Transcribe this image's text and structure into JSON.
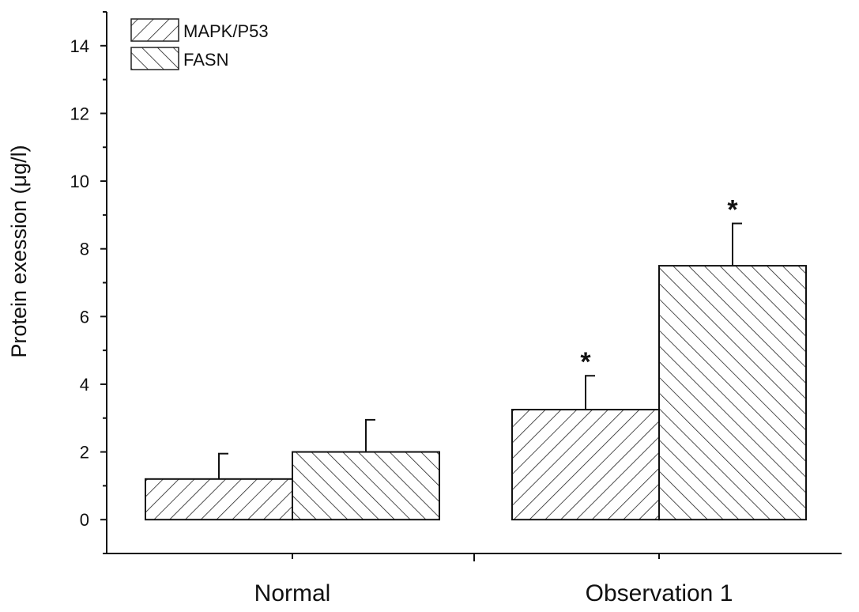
{
  "chart_data": {
    "type": "bar",
    "categories": [
      "Normal",
      "Observation 1"
    ],
    "series": [
      {
        "name": "MAPK/P53",
        "values": [
          1.2,
          3.25
        ],
        "errors": [
          0.75,
          1.0
        ],
        "pattern": "forward-hatch"
      },
      {
        "name": "FASN",
        "values": [
          2.0,
          7.5
        ],
        "errors": [
          0.95,
          1.25
        ],
        "pattern": "back-hatch"
      }
    ],
    "significance": [
      {
        "category": "Observation 1",
        "series": "MAPK/P53",
        "mark": "*"
      },
      {
        "category": "Observation 1",
        "series": "FASN",
        "mark": "*"
      }
    ],
    "title": "",
    "xlabel": "",
    "ylabel": "Protein exession (μg/l)",
    "ylim": [
      -1,
      15
    ],
    "yticks": [
      0,
      2,
      4,
      6,
      8,
      10,
      12,
      14
    ],
    "ytick_labels": [
      "0",
      "2",
      "4",
      "6",
      "8",
      "10",
      "12",
      "14"
    ],
    "legend_position": "top-left",
    "grid": false
  }
}
